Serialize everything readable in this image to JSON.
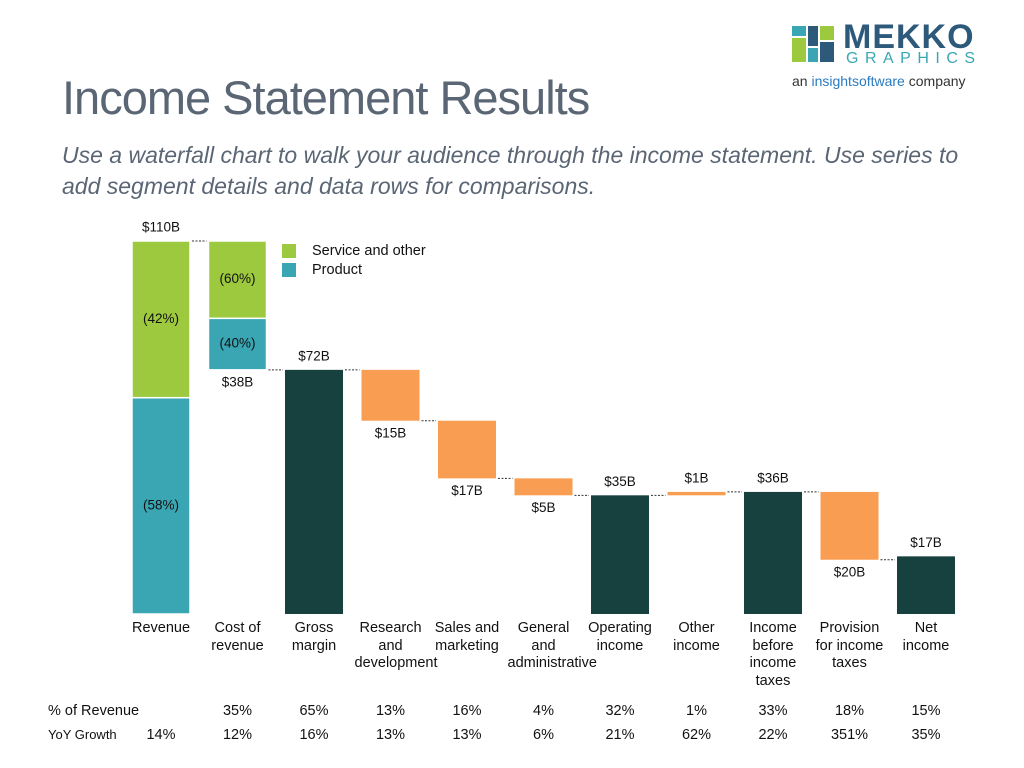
{
  "logo": {
    "name": "MEKKO",
    "tagline": "GRAPHICS",
    "prefix": "an",
    "brand": "insightsoftware",
    "suffix": "company"
  },
  "chart_data": {
    "type": "waterfall",
    "title": "Income Statement Results",
    "subtitle": "Use a waterfall chart to walk your audience through the income statement. Use series to add segment details and data rows for comparisons.",
    "categories": [
      "Revenue",
      "Cost of revenue",
      "Gross margin",
      "Research and development",
      "Sales and marketing",
      "General and administrative",
      "Operating income",
      "Other income",
      "Income before income taxes",
      "Provision for income taxes",
      "Net income"
    ],
    "values": [
      110,
      38,
      72,
      15,
      17,
      5,
      35,
      1,
      36,
      20,
      17
    ],
    "value_labels": [
      "$110B",
      "$38B",
      "$72B",
      "$15B",
      "$17B",
      "$5B",
      "$35B",
      "$1B",
      "$36B",
      "$20B",
      "$17B"
    ],
    "kinds": [
      "total",
      "decrease",
      "total",
      "decrease",
      "decrease",
      "decrease",
      "total",
      "increase",
      "total",
      "decrease",
      "total"
    ],
    "total_color": "#17413f",
    "change_color": "#f99d52",
    "series": [
      {
        "name": "Service and other",
        "color": "#9dc93e",
        "values": [
          42,
          60,
          null,
          null,
          null,
          null,
          null,
          null,
          null,
          null,
          null
        ],
        "value_labels": [
          "(42%)",
          "(60%)",
          null,
          null,
          null,
          null,
          null,
          null,
          null,
          null,
          null
        ]
      },
      {
        "name": "Product",
        "color": "#3aa6b3",
        "values": [
          58,
          40,
          null,
          null,
          null,
          null,
          null,
          null,
          null,
          null,
          null
        ],
        "value_labels": [
          "(58%)",
          "(40%)",
          null,
          null,
          null,
          null,
          null,
          null,
          null,
          null,
          null
        ]
      }
    ],
    "rows": [
      {
        "label": "% of Revenue",
        "cells": [
          null,
          "35%",
          "65%",
          "13%",
          "16%",
          "4%",
          "32%",
          "1%",
          "33%",
          "18%",
          "15%"
        ]
      },
      {
        "label": "YoY Growth",
        "cells": [
          "14%",
          "12%",
          "16%",
          "13%",
          "13%",
          "6%",
          "21%",
          "62%",
          "22%",
          "351%",
          "35%"
        ]
      }
    ]
  }
}
